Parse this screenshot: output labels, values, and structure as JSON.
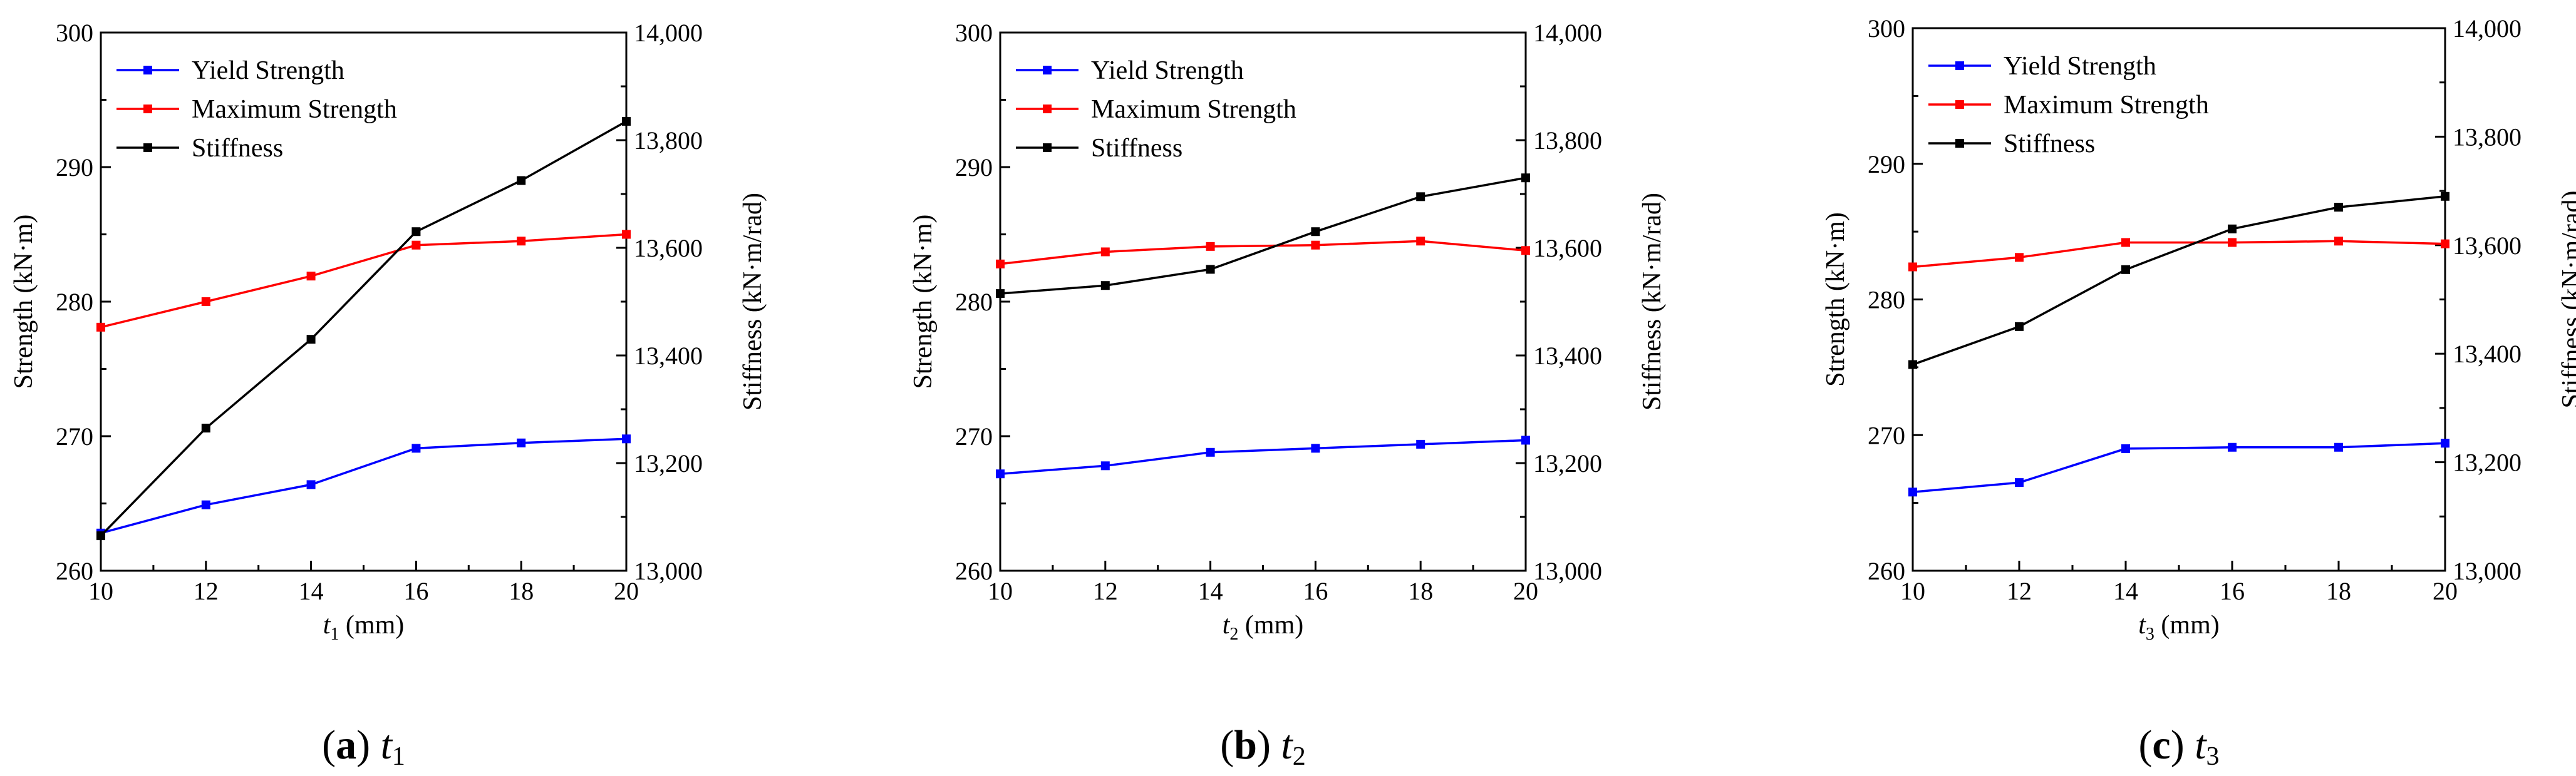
{
  "chart_data": [
    {
      "type": "line",
      "caption": {
        "label": "a",
        "var": "t",
        "sub": "1"
      },
      "xlabel": {
        "var": "t",
        "sub": "1",
        "unit": " (mm)"
      },
      "ylabel_left": "Strength (kN·m)",
      "ylabel_right": "Stiffness (kN·m/rad)",
      "x": [
        10,
        12,
        14,
        16,
        18,
        20
      ],
      "xlim": [
        10,
        20
      ],
      "xticks": [
        "10",
        "12",
        "14",
        "16",
        "18",
        "20"
      ],
      "ylim_left": [
        260,
        300
      ],
      "yticks_left": [
        "260",
        "270",
        "280",
        "290",
        "300"
      ],
      "ylim_right": [
        13000,
        14000
      ],
      "yticks_right": [
        "13,000",
        "13,200",
        "13,400",
        "13,600",
        "13,800",
        "14,000"
      ],
      "legend_position": "top-left",
      "grid": false,
      "series": [
        {
          "name": "Yield Strength",
          "axis": "left",
          "color": "#0000ff",
          "values": [
            262.8,
            264.9,
            266.4,
            269.1,
            269.5,
            269.8
          ]
        },
        {
          "name": "Maximum Strength",
          "axis": "left",
          "color": "#ff0000",
          "values": [
            278.1,
            280.0,
            281.9,
            284.2,
            284.5,
            285.0
          ]
        },
        {
          "name": "Stiffness",
          "axis": "right",
          "color": "#000000",
          "values": [
            13065,
            13265,
            13430,
            13630,
            13725,
            13835
          ]
        }
      ]
    },
    {
      "type": "line",
      "caption": {
        "label": "b",
        "var": "t",
        "sub": "2"
      },
      "xlabel": {
        "var": "t",
        "sub": "2",
        "unit": " (mm)"
      },
      "ylabel_left": "Strength (kN·m)",
      "ylabel_right": "Stiffness (kN·m/rad)",
      "x": [
        10,
        12,
        14,
        16,
        18,
        20
      ],
      "xlim": [
        10,
        20
      ],
      "xticks": [
        "10",
        "12",
        "14",
        "16",
        "18",
        "20"
      ],
      "ylim_left": [
        260,
        300
      ],
      "yticks_left": [
        "260",
        "270",
        "280",
        "290",
        "300"
      ],
      "ylim_right": [
        13000,
        14000
      ],
      "yticks_right": [
        "13,000",
        "13,200",
        "13,400",
        "13,600",
        "13,800",
        "14,000"
      ],
      "legend_position": "top-left",
      "grid": false,
      "series": [
        {
          "name": "Yield Strength",
          "axis": "left",
          "color": "#0000ff",
          "values": [
            267.2,
            267.8,
            268.8,
            269.1,
            269.4,
            269.7
          ]
        },
        {
          "name": "Maximum Strength",
          "axis": "left",
          "color": "#ff0000",
          "values": [
            282.8,
            283.7,
            284.1,
            284.2,
            284.5,
            283.8
          ]
        },
        {
          "name": "Stiffness",
          "axis": "right",
          "color": "#000000",
          "values": [
            13515,
            13530,
            13560,
            13630,
            13695,
            13730
          ]
        }
      ]
    },
    {
      "type": "line",
      "caption": {
        "label": "c",
        "var": "t",
        "sub": "3"
      },
      "xlabel": {
        "var": "t",
        "sub": "3",
        "unit": " (mm)"
      },
      "ylabel_left": "Strength (kN·m)",
      "ylabel_right": "Stiffness (kN·m/rad)",
      "x": [
        10,
        12,
        14,
        16,
        18,
        20
      ],
      "xlim": [
        10,
        20
      ],
      "xticks": [
        "10",
        "12",
        "14",
        "16",
        "18",
        "20"
      ],
      "ylim_left": [
        260,
        300
      ],
      "yticks_left": [
        "260",
        "270",
        "280",
        "290",
        "300"
      ],
      "ylim_right": [
        13000,
        14000
      ],
      "yticks_right": [
        "13,000",
        "13,200",
        "13,400",
        "13,600",
        "13,800",
        "14,000"
      ],
      "legend_position": "top-left",
      "grid": false,
      "series": [
        {
          "name": "Yield Strength",
          "axis": "left",
          "color": "#0000ff",
          "values": [
            265.8,
            266.5,
            269.0,
            269.1,
            269.1,
            269.4
          ]
        },
        {
          "name": "Maximum Strength",
          "axis": "left",
          "color": "#ff0000",
          "values": [
            282.4,
            283.1,
            284.2,
            284.2,
            284.3,
            284.1
          ]
        },
        {
          "name": "Stiffness",
          "axis": "right",
          "color": "#000000",
          "values": [
            13380,
            13450,
            13555,
            13630,
            13670,
            13690
          ]
        }
      ]
    }
  ]
}
